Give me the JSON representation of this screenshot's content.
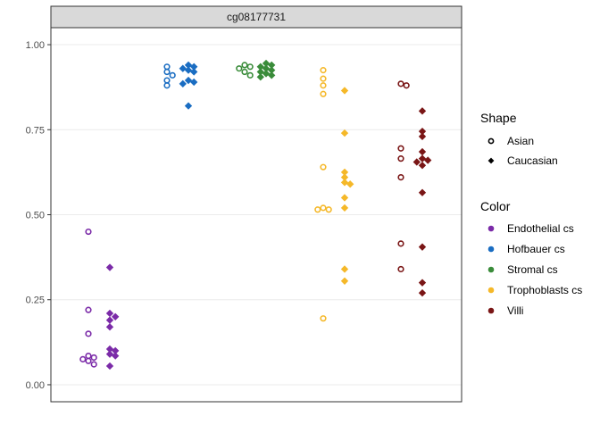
{
  "chart_data": {
    "type": "scatter",
    "title": "",
    "xlabel": "",
    "ylabel": "",
    "facet_label": "cg08177731",
    "ylim": [
      -0.05,
      1.05
    ],
    "yticks": [
      0.0,
      0.25,
      0.5,
      0.75,
      1.0
    ],
    "ytick_labels": [
      "0.00",
      "0.25",
      "0.50",
      "0.75",
      "1.00"
    ],
    "grid": true,
    "legend_placement": "right",
    "shape_legend": {
      "title": "Shape",
      "entries": [
        {
          "label": "Asian",
          "marker": "circle"
        },
        {
          "label": "Caucasian",
          "marker": "diamond"
        }
      ]
    },
    "color_legend": {
      "title": "Color",
      "entries": [
        {
          "label": "Endothelial cs",
          "color": "#7B2BA8"
        },
        {
          "label": "Hofbauer cs",
          "color": "#1A6DC2"
        },
        {
          "label": "Stromal cs",
          "color": "#3A8C3A"
        },
        {
          "label": "Trophoblasts cs",
          "color": "#F5B829"
        },
        {
          "label": "Villi",
          "color": "#7A1616"
        }
      ]
    },
    "series": [
      {
        "name": "Endothelial cs",
        "group": 1,
        "shape": "circle",
        "values": [
          0.45,
          0.22,
          0.15,
          0.085,
          0.08,
          0.075,
          0.07,
          0.06
        ]
      },
      {
        "name": "Endothelial cs",
        "group": 1,
        "shape": "diamond",
        "values": [
          0.345,
          0.21,
          0.2,
          0.19,
          0.17,
          0.105,
          0.1,
          0.09,
          0.085,
          0.055
        ]
      },
      {
        "name": "Hofbauer cs",
        "group": 2,
        "shape": "circle",
        "values": [
          0.935,
          0.92,
          0.91,
          0.895,
          0.88
        ]
      },
      {
        "name": "Hofbauer cs",
        "group": 2,
        "shape": "diamond",
        "values": [
          0.94,
          0.935,
          0.93,
          0.925,
          0.92,
          0.895,
          0.89,
          0.885,
          0.82
        ]
      },
      {
        "name": "Stromal cs",
        "group": 3,
        "shape": "circle",
        "values": [
          0.94,
          0.935,
          0.93,
          0.92,
          0.91
        ]
      },
      {
        "name": "Stromal cs",
        "group": 3,
        "shape": "diamond",
        "values": [
          0.945,
          0.94,
          0.935,
          0.93,
          0.925,
          0.92,
          0.915,
          0.91,
          0.905
        ]
      },
      {
        "name": "Trophoblasts cs",
        "group": 4,
        "shape": "circle",
        "values": [
          0.925,
          0.9,
          0.88,
          0.855,
          0.64,
          0.52,
          0.515,
          0.515,
          0.195
        ]
      },
      {
        "name": "Trophoblasts cs",
        "group": 4,
        "shape": "diamond",
        "values": [
          0.865,
          0.74,
          0.625,
          0.61,
          0.595,
          0.59,
          0.55,
          0.52,
          0.34,
          0.305
        ]
      },
      {
        "name": "Villi",
        "group": 5,
        "shape": "circle",
        "values": [
          0.885,
          0.88,
          0.695,
          0.665,
          0.61,
          0.415,
          0.34
        ]
      },
      {
        "name": "Villi",
        "group": 5,
        "shape": "diamond",
        "values": [
          0.805,
          0.745,
          0.73,
          0.685,
          0.665,
          0.66,
          0.655,
          0.645,
          0.565,
          0.405,
          0.3,
          0.27
        ]
      }
    ]
  }
}
